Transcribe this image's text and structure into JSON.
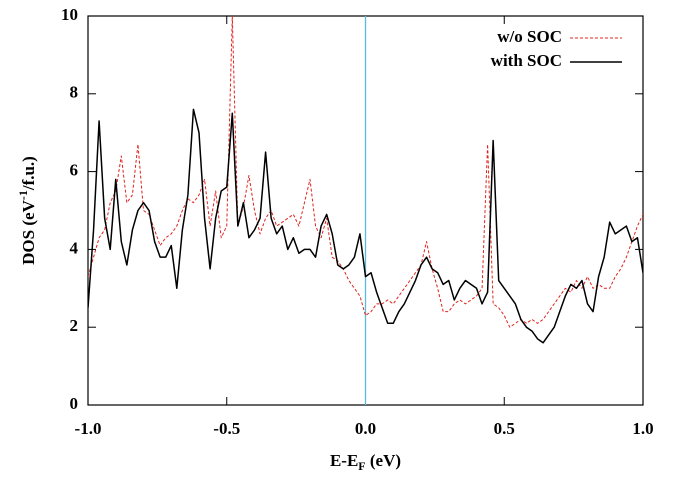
{
  "chart_data": {
    "type": "line",
    "xlabel": [
      "E-E",
      "F",
      " (eV)"
    ],
    "ylabel": [
      "DOS (eV",
      "-1",
      "/f.u.)"
    ],
    "x": [
      -1.0,
      -0.98,
      -0.96,
      -0.94,
      -0.92,
      -0.9,
      -0.88,
      -0.86,
      -0.84,
      -0.82,
      -0.8,
      -0.78,
      -0.76,
      -0.74,
      -0.72,
      -0.7,
      -0.68,
      -0.66,
      -0.64,
      -0.62,
      -0.6,
      -0.58,
      -0.56,
      -0.54,
      -0.52,
      -0.5,
      -0.48,
      -0.46,
      -0.44,
      -0.42,
      -0.4,
      -0.38,
      -0.36,
      -0.34,
      -0.32,
      -0.3,
      -0.28,
      -0.26,
      -0.24,
      -0.22,
      -0.2,
      -0.18,
      -0.16,
      -0.14,
      -0.12,
      -0.1,
      -0.08,
      -0.06,
      -0.04,
      -0.02,
      0.0,
      0.02,
      0.04,
      0.06,
      0.08,
      0.1,
      0.12,
      0.14,
      0.16,
      0.18,
      0.2,
      0.22,
      0.24,
      0.26,
      0.28,
      0.3,
      0.32,
      0.34,
      0.36,
      0.38,
      0.4,
      0.42,
      0.44,
      0.46,
      0.48,
      0.5,
      0.52,
      0.54,
      0.56,
      0.58,
      0.6,
      0.62,
      0.64,
      0.66,
      0.68,
      0.7,
      0.72,
      0.74,
      0.76,
      0.78,
      0.8,
      0.82,
      0.84,
      0.86,
      0.88,
      0.9,
      0.92,
      0.94,
      0.96,
      0.98,
      1.0
    ],
    "series": [
      {
        "name": "w/o SOC",
        "color": "#e0241c",
        "dashed": true,
        "values": [
          3.3,
          3.8,
          4.3,
          4.5,
          5.2,
          5.5,
          6.4,
          5.2,
          5.4,
          6.7,
          5.0,
          4.9,
          4.5,
          4.1,
          4.3,
          4.4,
          4.6,
          5.0,
          5.3,
          5.2,
          5.4,
          5.8,
          4.6,
          5.5,
          4.3,
          4.6,
          10,
          4.6,
          5.1,
          5.9,
          5.0,
          4.4,
          4.8,
          5.0,
          4.6,
          4.7,
          4.8,
          4.9,
          4.6,
          5.2,
          5.8,
          4.6,
          4.3,
          4.8,
          3.8,
          3.7,
          3.5,
          3.2,
          3.0,
          2.8,
          2.3,
          2.4,
          2.6,
          2.6,
          2.7,
          2.6,
          2.8,
          3.0,
          3.2,
          3.4,
          3.6,
          4.2,
          3.5,
          3.0,
          2.4,
          2.4,
          2.6,
          2.7,
          2.6,
          2.7,
          2.8,
          3.0,
          6.7,
          2.6,
          2.5,
          2.3,
          2.0,
          2.1,
          2.2,
          2.1,
          2.2,
          2.1,
          2.2,
          2.4,
          2.6,
          2.8,
          3.0,
          2.9,
          3.2,
          3.0,
          3.3,
          3.0,
          3.1,
          3.0,
          3.0,
          3.3,
          3.5,
          3.8,
          4.2,
          4.6,
          4.9
        ]
      },
      {
        "name": "with SOC",
        "color": "#000000",
        "dashed": false,
        "values": [
          2.5,
          4.5,
          7.3,
          4.8,
          4.0,
          5.8,
          4.2,
          3.6,
          4.5,
          5.0,
          5.2,
          5.0,
          4.2,
          3.8,
          3.8,
          4.1,
          3.0,
          4.5,
          5.4,
          7.6,
          7.0,
          4.8,
          3.5,
          4.8,
          5.5,
          5.6,
          7.5,
          4.6,
          5.2,
          4.3,
          4.5,
          4.8,
          6.5,
          4.8,
          4.4,
          4.6,
          4.0,
          4.3,
          3.9,
          4.0,
          4.0,
          3.8,
          4.6,
          4.9,
          4.4,
          3.6,
          3.5,
          3.6,
          3.8,
          4.4,
          3.3,
          3.4,
          2.9,
          2.5,
          2.1,
          2.1,
          2.4,
          2.6,
          2.9,
          3.2,
          3.6,
          3.8,
          3.5,
          3.4,
          3.1,
          3.2,
          2.7,
          3.0,
          3.2,
          3.1,
          3.0,
          2.6,
          2.9,
          6.8,
          3.2,
          3.0,
          2.8,
          2.6,
          2.2,
          2.0,
          1.9,
          1.7,
          1.6,
          1.8,
          2.0,
          2.4,
          2.8,
          3.1,
          3.0,
          3.2,
          2.6,
          2.4,
          3.3,
          3.8,
          4.7,
          4.4,
          4.5,
          4.6,
          4.2,
          4.3,
          3.4
        ]
      }
    ],
    "vline": {
      "x": 0,
      "color": "#5bbcd8"
    },
    "xlim": [
      -1,
      1
    ],
    "xticks": [
      {
        "value": -1,
        "label": "-1.0"
      },
      -0.5,
      {
        "value": 0,
        "label": "0.0"
      },
      0.5,
      {
        "value": 1,
        "label": "1.0"
      }
    ],
    "ylim": [
      0,
      10
    ],
    "yticks": [
      0,
      2,
      4,
      6,
      8,
      10
    ],
    "legend": "top-right"
  }
}
